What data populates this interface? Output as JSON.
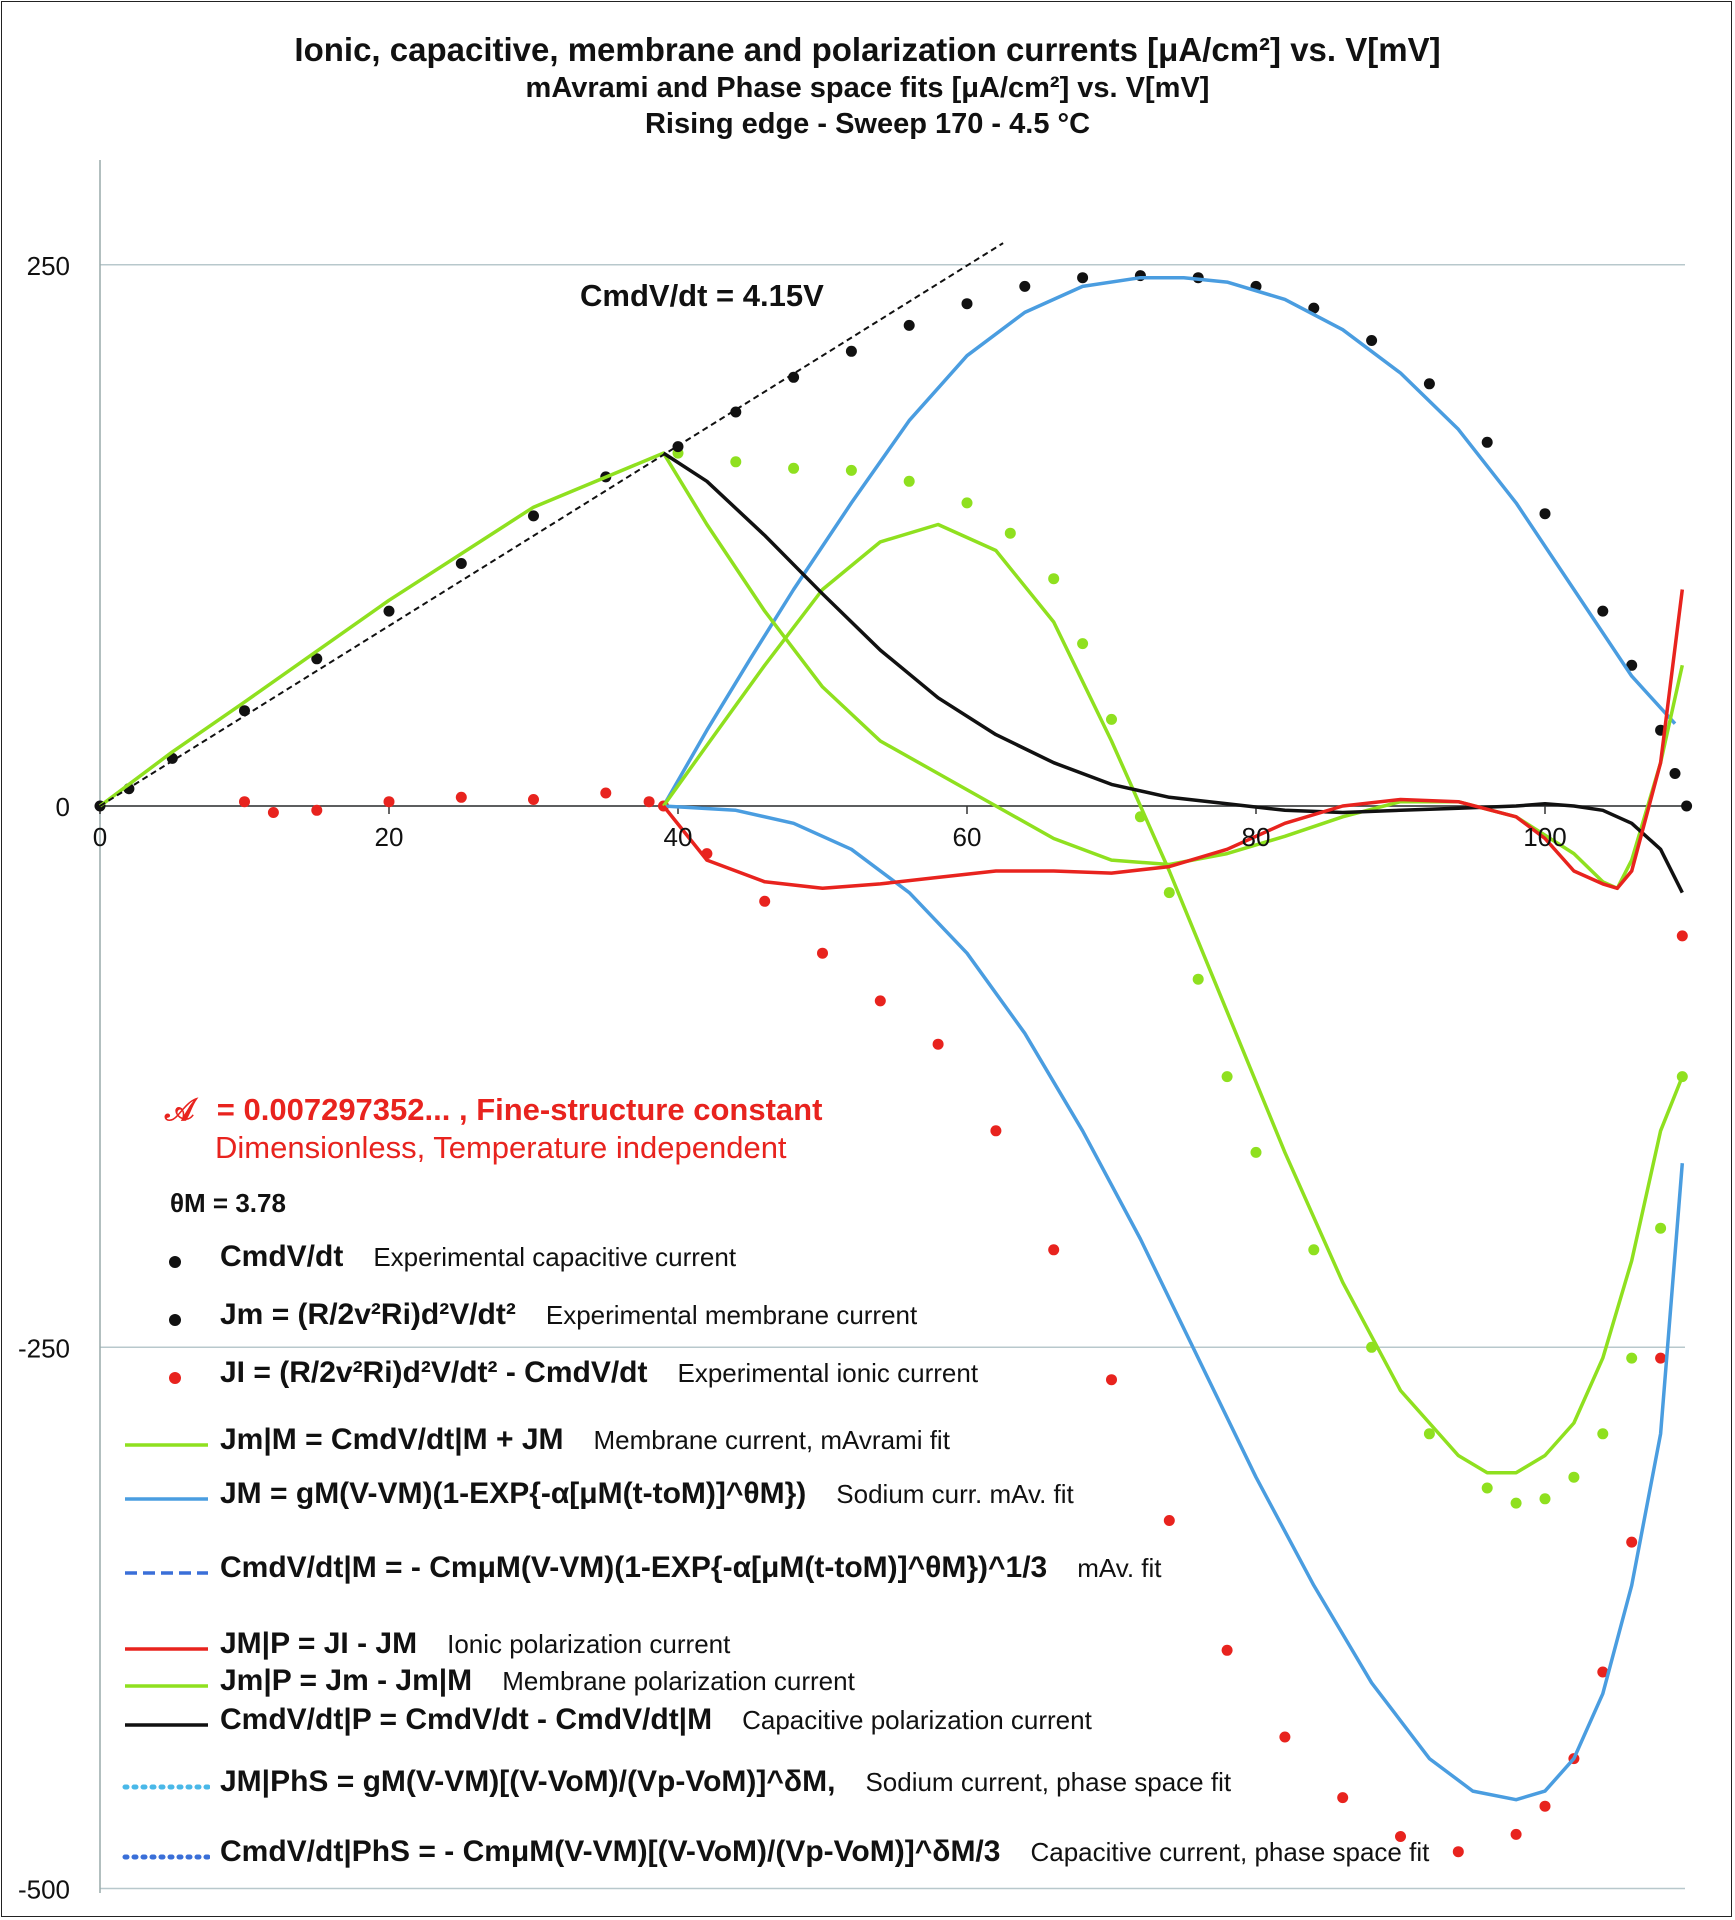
{
  "title": {
    "line1": "Ionic, capacitive, membrane and polarization currents [μA/cm²]  vs. V[mV]",
    "line2": "mAvrami and Phase space fits [μA/cm²] vs. V[mV]",
    "line3": "Rising edge - Sweep 170 - 4.5 °C"
  },
  "annotation": {
    "slope": "CmdV/dt = 4.15V",
    "fine_structure": "= 0.007297352... , Fine-structure constant",
    "fine_structure_symbol": "𝒜",
    "fine_structure_sub": "Dimensionless, Temperature independent",
    "theta": "θM = 3.78"
  },
  "legend": [
    {
      "marker": "dot",
      "color": "#111111",
      "eq": "CmdV/dt",
      "desc": "Experimental capacitive current"
    },
    {
      "marker": "dot",
      "color": "#111111",
      "eq": "Jm = (R/2v²Ri)d²V/dt²",
      "desc": "Experimental membrane current"
    },
    {
      "marker": "dot",
      "color": "#e8231e",
      "eq": "JI  = (R/2v²Ri)d²V/dt² - CmdV/dt",
      "desc": "Experimental ionic current"
    },
    {
      "marker": "line",
      "color": "#8fe01f",
      "eq": "Jm|M = CmdV/dt|M + JM",
      "desc": "Membrane current, mAvrami fit"
    },
    {
      "marker": "line",
      "color": "#4a9de0",
      "eq": "JM = gM(V-VM)(1-EXP{-α[μM(t-toM)]^θM})",
      "desc": "Sodium curr. mAv. fit"
    },
    {
      "marker": "dash",
      "color": "#3a6fd8",
      "eq": "CmdV/dt|M = - CmμM(V-VM)(1-EXP{-α[μM(t-toM)]^θM})^1/3",
      "desc": "mAv. fit"
    },
    {
      "marker": "line",
      "color": "#e8231e",
      "eq": "JM|P =  JI  -  JM",
      "desc": "Ionic polarization current"
    },
    {
      "marker": "line",
      "color": "#8fe01f",
      "eq": "Jm|P = Jm - Jm|M",
      "desc": "Membrane polarization current"
    },
    {
      "marker": "line",
      "color": "#111111",
      "eq": "CmdV/dt|P = CmdV/dt -  CmdV/dt|M",
      "desc": "Capacitive polarization current"
    },
    {
      "marker": "dotline",
      "color": "#4ab8e8",
      "eq": "JM|PhS = gM(V-VM)[(V-VoM)/(Vp-VoM)]^δM,",
      "desc": "Sodium current, phase space fit"
    },
    {
      "marker": "dotline",
      "color": "#3a6fd8",
      "eq": "CmdV/dt|PhS = - CmμM(V-VM)[(V-VoM)/(Vp-VoM)]^δM/3",
      "desc": "Capacitive current, phase space fit"
    }
  ],
  "chart_data": {
    "type": "line",
    "xlim": [
      0,
      110
    ],
    "ylim": [
      -500,
      250
    ],
    "x_ticks": [
      "0",
      "20",
      "40",
      "60",
      "80",
      "100"
    ],
    "y_ticks": [
      "250",
      "0",
      "-250",
      "-500"
    ],
    "grid": "horizontal",
    "colors": {
      "capacitive_exp": "#111111",
      "ionic_exp": "#e8231e",
      "membrane_fit": "#8fe01f",
      "sodium_fit": "#4a9de0",
      "capacitive_fit": "#3a6fd8",
      "phs_sodium": "#4ab8e8",
      "black_line": "#111111"
    },
    "series": [
      {
        "id": "membrane_exp_dots",
        "style": "dots",
        "color": "#8fe01f",
        "x": [
          40,
          44,
          48,
          52,
          56,
          60,
          63,
          66,
          68,
          70,
          72,
          74,
          76,
          78,
          80,
          84,
          88,
          92,
          96,
          98,
          100,
          102,
          104,
          106,
          108,
          109.5
        ],
        "y": [
          163,
          159,
          156,
          155,
          150,
          140,
          126,
          105,
          75,
          40,
          -5,
          -40,
          -80,
          -125,
          -160,
          -205,
          -250,
          -290,
          -315,
          -322,
          -320,
          -310,
          -290,
          -255,
          -195,
          -125
        ]
      },
      {
        "id": "capacitive_exp_dots",
        "style": "dots",
        "color": "#111111",
        "x": [
          0,
          2,
          5,
          10,
          15,
          20,
          25,
          30,
          35,
          40,
          44,
          48,
          52,
          56,
          60,
          64,
          68,
          72,
          76,
          80,
          84,
          88,
          92,
          96,
          100,
          104,
          106,
          108,
          109,
          109.8
        ],
        "y": [
          0,
          8,
          22,
          44,
          68,
          90,
          112,
          134,
          152,
          166,
          182,
          198,
          210,
          222,
          232,
          240,
          244,
          245,
          244,
          240,
          230,
          215,
          195,
          168,
          135,
          90,
          65,
          35,
          15,
          0
        ]
      },
      {
        "id": "sodium_fit_blue",
        "style": "line",
        "color": "#4a9de0",
        "x": [
          39,
          42,
          45,
          48,
          52,
          56,
          60,
          64,
          68,
          72,
          75,
          78,
          82,
          86,
          90,
          94,
          98,
          102,
          106,
          109
        ],
        "y": [
          0,
          35,
          68,
          100,
          140,
          178,
          208,
          228,
          240,
          244,
          244,
          242,
          234,
          220,
          200,
          174,
          140,
          100,
          60,
          38
        ]
      },
      {
        "id": "ionic_exp_dots",
        "style": "dots",
        "color": "#e8231e",
        "x": [
          10,
          12,
          15,
          20,
          25,
          30,
          35,
          38,
          39,
          42,
          46,
          50,
          54,
          58,
          62,
          66,
          70,
          74,
          78,
          82,
          86,
          90,
          94,
          98,
          100,
          102,
          104,
          106,
          108,
          109.5
        ],
        "y": [
          2,
          -3,
          -2,
          2,
          4,
          3,
          6,
          2,
          0,
          -22,
          -44,
          -68,
          -90,
          -110,
          -150,
          -205,
          -265,
          -330,
          -390,
          -430,
          -458,
          -476,
          -483,
          -475,
          -462,
          -440,
          -400,
          -340,
          -255,
          -60
        ]
      },
      {
        "id": "sodium_curve",
        "style": "line",
        "color": "#4a9de0",
        "x": [
          39,
          44,
          48,
          52,
          56,
          60,
          64,
          68,
          72,
          76,
          80,
          84,
          88,
          92,
          95,
          98,
          100,
          102,
          104,
          106,
          108,
          109.5
        ],
        "y": [
          0,
          -2,
          -8,
          -20,
          -40,
          -68,
          -105,
          -150,
          -200,
          -255,
          -310,
          -360,
          -405,
          -440,
          -455,
          -459,
          -455,
          -440,
          -410,
          -360,
          -290,
          -165
        ]
      },
      {
        "id": "membrane_fit_curve",
        "style": "line",
        "color": "#8fe01f",
        "x": [
          39,
          42,
          46,
          50,
          54,
          58,
          62,
          66,
          70,
          74,
          78,
          82,
          86,
          90,
          94,
          96,
          98,
          100,
          102,
          104,
          106,
          108,
          109.5
        ],
        "y": [
          0,
          28,
          65,
          100,
          122,
          130,
          118,
          85,
          30,
          -30,
          -95,
          -160,
          -220,
          -270,
          -300,
          -308,
          -308,
          -300,
          -285,
          -255,
          -210,
          -150,
          -125
        ]
      },
      {
        "id": "membrane_polarization",
        "style": "line",
        "color": "#8fe01f",
        "x": [
          0,
          5,
          10,
          20,
          30,
          39,
          42,
          46,
          50,
          54,
          58,
          62,
          66,
          70,
          74,
          78,
          82,
          86,
          90,
          94,
          98,
          102,
          104,
          105,
          106,
          108,
          109.5
        ],
        "y": [
          0,
          25,
          48,
          95,
          138,
          163,
          130,
          90,
          55,
          30,
          15,
          0,
          -15,
          -25,
          -27,
          -22,
          -14,
          -5,
          2,
          2,
          -5,
          -22,
          -35,
          -38,
          -25,
          20,
          65
        ]
      },
      {
        "id": "capacitive_polarization",
        "style": "line",
        "color": "#111111",
        "x": [
          39,
          42,
          46,
          50,
          54,
          58,
          62,
          66,
          70,
          74,
          78,
          82,
          86,
          90,
          94,
          98,
          100,
          102,
          104,
          106,
          108,
          109.5
        ],
        "y": [
          163,
          150,
          125,
          98,
          72,
          50,
          33,
          20,
          10,
          4,
          1,
          -2,
          -3,
          -2,
          -1,
          0,
          1,
          0,
          -2,
          -8,
          -20,
          -40
        ]
      },
      {
        "id": "ionic_polarization",
        "style": "line",
        "color": "#e8231e",
        "x": [
          39,
          42,
          46,
          50,
          54,
          58,
          62,
          66,
          70,
          74,
          78,
          82,
          86,
          90,
          94,
          98,
          100,
          102,
          104,
          105,
          106,
          108,
          109.5
        ],
        "y": [
          0,
          -25,
          -35,
          -38,
          -36,
          -33,
          -30,
          -30,
          -31,
          -28,
          -20,
          -8,
          0,
          3,
          2,
          -5,
          -15,
          -30,
          -36,
          -38,
          -30,
          20,
          100
        ]
      },
      {
        "id": "capacitive_fit_slope",
        "style": "dashline",
        "color": "#111111",
        "x": [
          0,
          62.5
        ],
        "y": [
          0,
          260
        ]
      }
    ]
  }
}
